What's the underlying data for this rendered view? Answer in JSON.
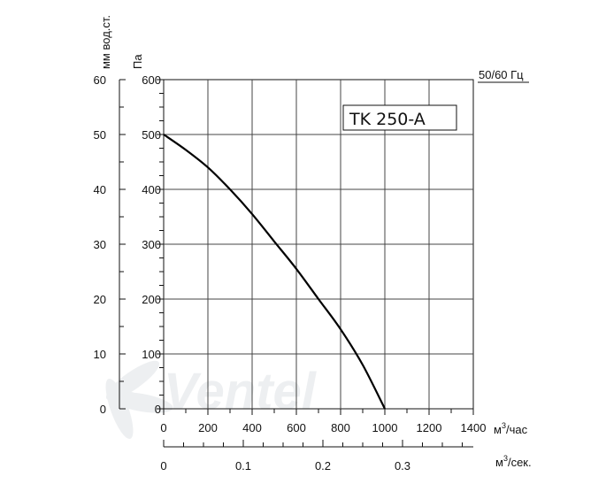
{
  "chart_data": {
    "type": "line",
    "model_label": "TK 250-A",
    "frequency_label": "50/60 Гц",
    "watermark": "Ventel",
    "left_axis_title": "мм вод.ст.",
    "pa_axis_title": "Па",
    "x_axis_title_m3h_base": "м",
    "x_axis_title_m3h_sup": "3",
    "x_axis_title_m3h_suffix": "/час",
    "x_axis_title_m3s_base": "м",
    "x_axis_title_m3s_sup": "3",
    "x_axis_title_m3s_suffix": "/сек.",
    "xlim": [
      0,
      1400
    ],
    "ylim": [
      0,
      600
    ],
    "x_ticks": [
      "0",
      "200",
      "400",
      "600",
      "800",
      "1000",
      "1200",
      "1400"
    ],
    "y_ticks_pa": [
      "0",
      "100",
      "200",
      "300",
      "400",
      "500",
      "600"
    ],
    "y_ticks_mm": [
      "0",
      "10",
      "20",
      "30",
      "40",
      "50",
      "60"
    ],
    "x_ticks_m3s": [
      {
        "value": 0,
        "label": "0"
      },
      {
        "value": 0.1,
        "label": "0.1"
      },
      {
        "value": 0.2,
        "label": "0.2"
      },
      {
        "value": 0.3,
        "label": "0.3"
      }
    ],
    "grid": true,
    "series": [
      {
        "x": [
          0,
          100,
          200,
          300,
          400,
          500,
          600,
          700,
          800,
          900,
          1000
        ],
        "y": [
          500,
          472,
          440,
          400,
          355,
          305,
          255,
          200,
          145,
          80,
          0
        ]
      }
    ]
  }
}
